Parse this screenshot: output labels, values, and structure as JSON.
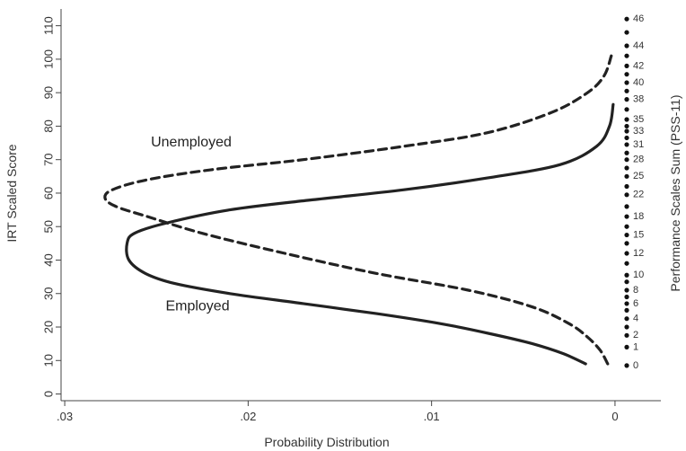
{
  "chart_data": {
    "type": "line",
    "title": "",
    "xlabel": "Probability Distribution",
    "ylabel": "IRT Scaled Score",
    "y2label": "Performance Scales Sum (PSS-11)",
    "xlim": [
      0.0302,
      -0.0025
    ],
    "ylim": [
      -2,
      115
    ],
    "x_ticks": [
      {
        "value": 0.03,
        "label": ".03"
      },
      {
        "value": 0.02,
        "label": ".02"
      },
      {
        "value": 0.01,
        "label": ".01"
      },
      {
        "value": 0,
        "label": "0"
      }
    ],
    "y_ticks": [
      0,
      10,
      20,
      30,
      40,
      50,
      60,
      70,
      80,
      90,
      100,
      110
    ],
    "grid": false,
    "series": [
      {
        "name": "Employed",
        "style": "solid",
        "points": [
          [
            0.0016,
            9
          ],
          [
            0.0028,
            12
          ],
          [
            0.0045,
            15
          ],
          [
            0.0068,
            18
          ],
          [
            0.0095,
            21
          ],
          [
            0.013,
            24
          ],
          [
            0.017,
            27
          ],
          [
            0.021,
            30
          ],
          [
            0.024,
            33
          ],
          [
            0.0256,
            36
          ],
          [
            0.0265,
            40
          ],
          [
            0.0266,
            45
          ],
          [
            0.0262,
            48
          ],
          [
            0.0245,
            51
          ],
          [
            0.021,
            55
          ],
          [
            0.0165,
            58
          ],
          [
            0.0115,
            61
          ],
          [
            0.007,
            64.5
          ],
          [
            0.003,
            68.5
          ],
          [
            0.001,
            74
          ],
          [
            0.0003,
            80
          ],
          [
            0.0001,
            86.5
          ]
        ]
      },
      {
        "name": "Unemployed",
        "style": "dashed",
        "points": [
          [
            0.0004,
            9
          ],
          [
            0.0008,
            13
          ],
          [
            0.0015,
            17
          ],
          [
            0.0025,
            21
          ],
          [
            0.0045,
            26
          ],
          [
            0.008,
            31
          ],
          [
            0.013,
            36
          ],
          [
            0.018,
            42
          ],
          [
            0.0225,
            48
          ],
          [
            0.0255,
            53
          ],
          [
            0.0272,
            56
          ],
          [
            0.0278,
            58.5
          ],
          [
            0.0274,
            61
          ],
          [
            0.0255,
            64
          ],
          [
            0.022,
            67
          ],
          [
            0.017,
            70
          ],
          [
            0.0115,
            74
          ],
          [
            0.007,
            78
          ],
          [
            0.0035,
            84
          ],
          [
            0.0015,
            90
          ],
          [
            0.0006,
            95
          ],
          [
            0.0002,
            101
          ]
        ]
      }
    ],
    "annotations": [
      {
        "text": "Unemployed",
        "x": 0.0253,
        "y": 74
      },
      {
        "text": "Employed",
        "x": 0.0245,
        "y": 25
      }
    ],
    "pss_scale": {
      "labels": [
        {
          "label": "46",
          "y": 112
        },
        {
          "label": "44",
          "y": 104
        },
        {
          "label": "42",
          "y": 98
        },
        {
          "label": "40",
          "y": 93
        },
        {
          "label": "38",
          "y": 88
        },
        {
          "label": "35",
          "y": 82
        },
        {
          "label": "33",
          "y": 78.5
        },
        {
          "label": "31",
          "y": 74.5
        },
        {
          "label": "28",
          "y": 70
        },
        {
          "label": "25",
          "y": 65
        },
        {
          "label": "22",
          "y": 59.5
        },
        {
          "label": "18",
          "y": 53
        },
        {
          "label": "15",
          "y": 47.5
        },
        {
          "label": "12",
          "y": 42
        },
        {
          "label": "10",
          "y": 35.5
        },
        {
          "label": "8",
          "y": 31
        },
        {
          "label": "6",
          "y": 27
        },
        {
          "label": "4",
          "y": 22.5
        },
        {
          "label": "2",
          "y": 17.5
        },
        {
          "label": "1",
          "y": 14
        },
        {
          "label": "0",
          "y": 8.5
        }
      ],
      "dots": [
        112,
        108,
        104,
        101,
        98,
        95.5,
        93,
        90.5,
        88,
        85,
        82,
        80,
        78.5,
        76.5,
        74.5,
        72,
        70,
        67.5,
        65,
        62,
        59.5,
        56,
        53,
        50,
        47.5,
        45,
        42,
        39,
        35.5,
        33.5,
        31,
        29,
        27,
        25,
        22.5,
        20,
        17.5,
        14,
        8.5
      ]
    }
  },
  "colors": {
    "line": "#222222",
    "axis": "#444444",
    "dot": "#111111",
    "background": "#ffffff"
  }
}
